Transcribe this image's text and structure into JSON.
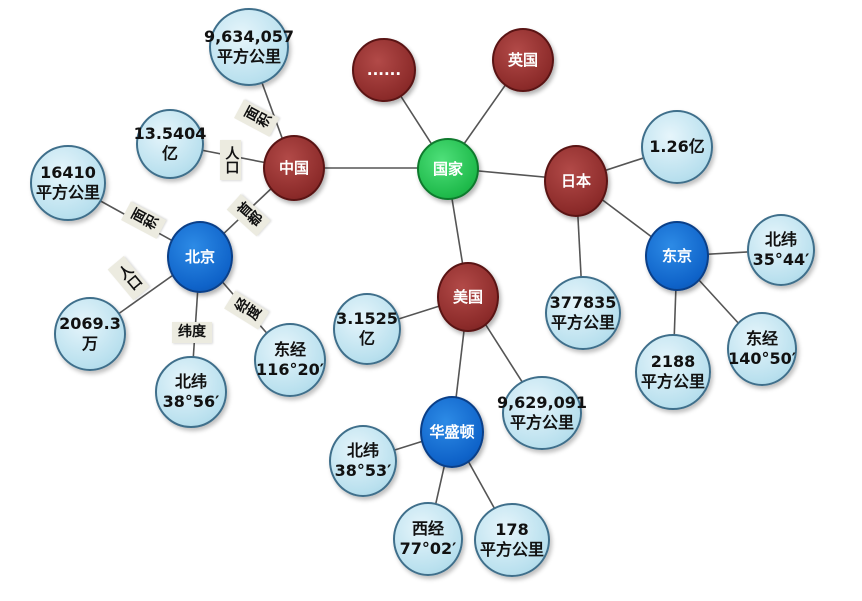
{
  "nodes": {
    "guojia": "国家",
    "zhongguo": "中国",
    "yingguo": "英国",
    "more": "......",
    "riben": "日本",
    "meiguo": "美国",
    "beijing": "北京",
    "dongjing": "东京",
    "huashengdun": "华盛顿",
    "cn_area": [
      "9,634,057",
      "平方公里"
    ],
    "cn_pop": [
      "13.5404",
      "亿"
    ],
    "bj_area": [
      "16410",
      "平方公里"
    ],
    "bj_pop": [
      "2069.3",
      "万"
    ],
    "bj_lat": [
      "北纬",
      "38°56′"
    ],
    "bj_lon": [
      "东经",
      "116°20′"
    ],
    "jp_pop": "1.26亿",
    "jp_area": [
      "377835",
      "平方公里"
    ],
    "tk_lat": [
      "北纬",
      "35°44′"
    ],
    "tk_area": [
      "2188",
      "平方公里"
    ],
    "tk_lon": [
      "东经",
      "140°50′"
    ],
    "us_pop": [
      "3.1525",
      "亿"
    ],
    "us_area": [
      "9,629,091",
      "平方公里"
    ],
    "dc_lat": [
      "北纬",
      "38°53′"
    ],
    "dc_lon": [
      "西经",
      "77°02′"
    ],
    "dc_area": [
      "178",
      "平方公里"
    ]
  },
  "labels": {
    "mianji": "面积",
    "renkou": "人口",
    "shoudu": "首都",
    "weidu": "纬度",
    "jingdu": "经度"
  },
  "colors": {
    "country": "#8c2b2a",
    "capital": "#0f63c9",
    "root": "#1fba4b",
    "attribute": "#b9e0ee",
    "edge": "#555555"
  }
}
